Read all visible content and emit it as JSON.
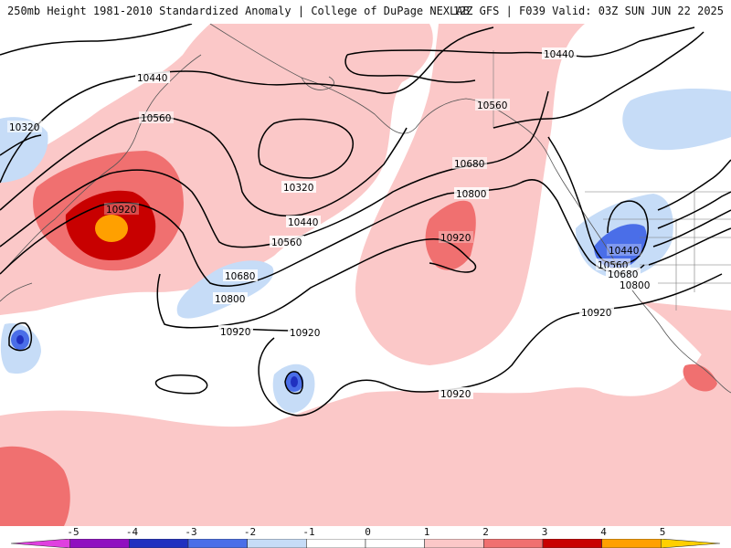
{
  "header": {
    "title_left": "250mb Height 1981-2010 Standardized Anomaly | College of DuPage NEXLAB",
    "title_right": "12Z GFS | F039 Valid: 03Z SUN JUN 22 2025"
  },
  "contour_labels": {
    "l1": "10440",
    "l2": "10320",
    "l3": "10560",
    "l4": "10920",
    "l5": "10320",
    "l6": "10440",
    "l7": "10560",
    "l8": "10680",
    "l9": "10800",
    "l10": "10920",
    "l11": "10920",
    "l12": "10560",
    "l13": "10680",
    "l14": "10800",
    "l15": "10920",
    "l16": "10440",
    "l17": "10440",
    "l18": "10560",
    "l19": "10680",
    "l20": "10800",
    "l21": "10920",
    "l22": "10920"
  },
  "colorbar": {
    "ticks": [
      "-5",
      "-4",
      "-3",
      "-2",
      "-1",
      "0",
      "1",
      "2",
      "3",
      "4",
      "5"
    ],
    "colors": [
      "#e040e0",
      "#9010c0",
      "#2030c0",
      "#4a6ee8",
      "#c6dcf7",
      "#ffffff",
      "#ffffff",
      "#fbc8c8",
      "#f07070",
      "#c80000",
      "#ffa000",
      "#ffd000"
    ]
  }
}
